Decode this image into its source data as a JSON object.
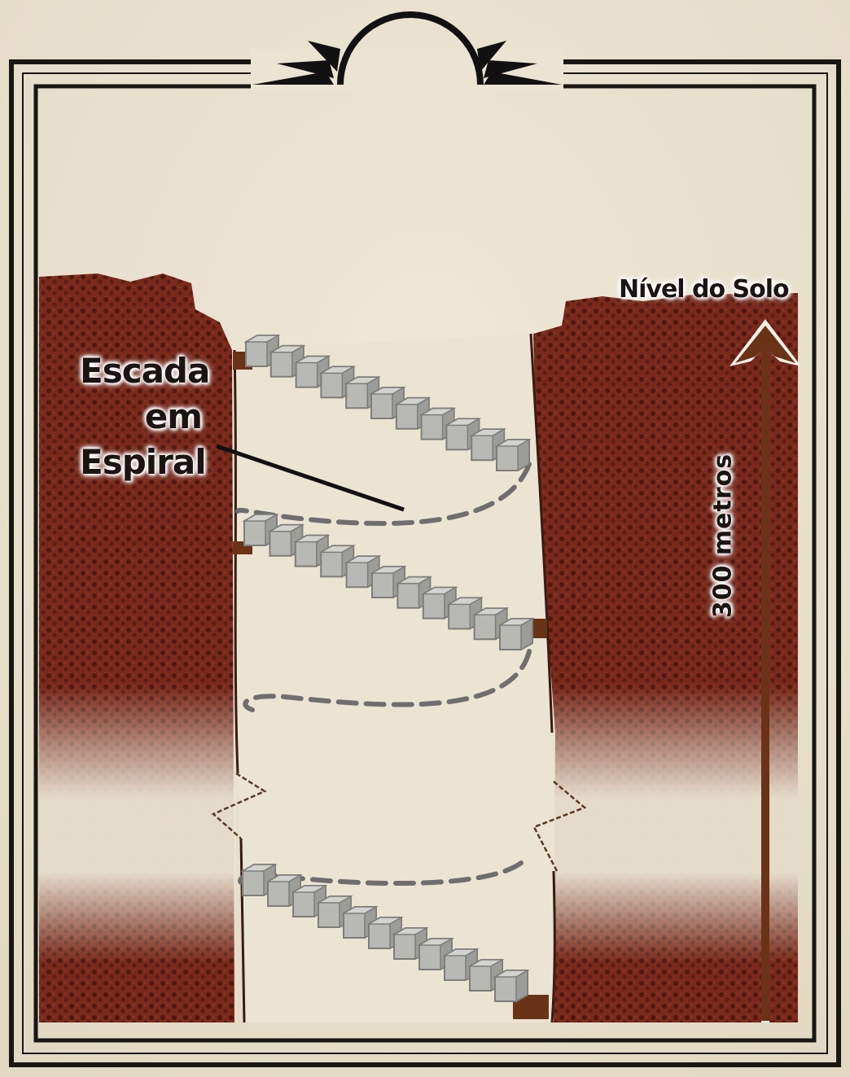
{
  "labels": {
    "stair_line1": "Escada",
    "stair_line2": "em",
    "stair_line3": "Espiral",
    "ground_level": "Nível do Solo",
    "depth": "300 metros"
  },
  "colors": {
    "paper": "#ebe4d3",
    "earth": "#7a2a1c",
    "earth_dark": "#4e1810",
    "frame": "#1a1614",
    "stairs": "#b5b5b2",
    "stairs_edge": "#7d7d7a",
    "arrow": "#6a3318",
    "dashes": "#6e6e6e"
  },
  "icons": [
    "ornament-fan-icon",
    "depth-arrow-icon"
  ]
}
